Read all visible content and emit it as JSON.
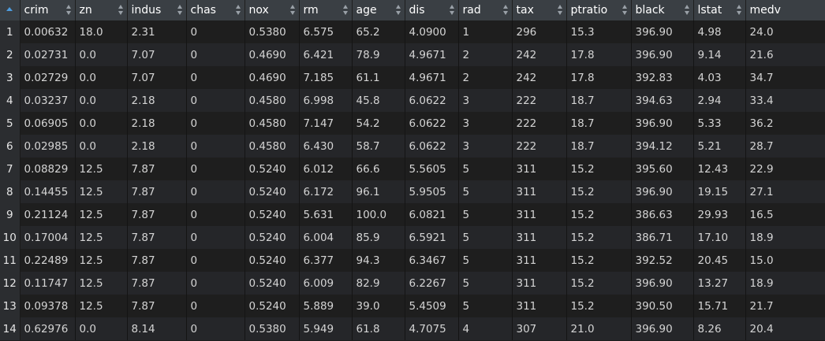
{
  "columns": [
    "crim",
    "zn",
    "indus",
    "chas",
    "nox",
    "rm",
    "age",
    "dis",
    "rad",
    "tax",
    "ptratio",
    "black",
    "lstat",
    "medv"
  ],
  "rows": [
    {
      "index": "1",
      "cells": [
        "0.00632",
        "18.0",
        "2.31",
        "0",
        "0.5380",
        "6.575",
        "65.2",
        "4.0900",
        "1",
        "296",
        "15.3",
        "396.90",
        "4.98",
        "24.0"
      ]
    },
    {
      "index": "2",
      "cells": [
        "0.02731",
        "0.0",
        "7.07",
        "0",
        "0.4690",
        "6.421",
        "78.9",
        "4.9671",
        "2",
        "242",
        "17.8",
        "396.90",
        "9.14",
        "21.6"
      ]
    },
    {
      "index": "3",
      "cells": [
        "0.02729",
        "0.0",
        "7.07",
        "0",
        "0.4690",
        "7.185",
        "61.1",
        "4.9671",
        "2",
        "242",
        "17.8",
        "392.83",
        "4.03",
        "34.7"
      ]
    },
    {
      "index": "4",
      "cells": [
        "0.03237",
        "0.0",
        "2.18",
        "0",
        "0.4580",
        "6.998",
        "45.8",
        "6.0622",
        "3",
        "222",
        "18.7",
        "394.63",
        "2.94",
        "33.4"
      ]
    },
    {
      "index": "5",
      "cells": [
        "0.06905",
        "0.0",
        "2.18",
        "0",
        "0.4580",
        "7.147",
        "54.2",
        "6.0622",
        "3",
        "222",
        "18.7",
        "396.90",
        "5.33",
        "36.2"
      ]
    },
    {
      "index": "6",
      "cells": [
        "0.02985",
        "0.0",
        "2.18",
        "0",
        "0.4580",
        "6.430",
        "58.7",
        "6.0622",
        "3",
        "222",
        "18.7",
        "394.12",
        "5.21",
        "28.7"
      ]
    },
    {
      "index": "7",
      "cells": [
        "0.08829",
        "12.5",
        "7.87",
        "0",
        "0.5240",
        "6.012",
        "66.6",
        "5.5605",
        "5",
        "311",
        "15.2",
        "395.60",
        "12.43",
        "22.9"
      ]
    },
    {
      "index": "8",
      "cells": [
        "0.14455",
        "12.5",
        "7.87",
        "0",
        "0.5240",
        "6.172",
        "96.1",
        "5.9505",
        "5",
        "311",
        "15.2",
        "396.90",
        "19.15",
        "27.1"
      ]
    },
    {
      "index": "9",
      "cells": [
        "0.21124",
        "12.5",
        "7.87",
        "0",
        "0.5240",
        "5.631",
        "100.0",
        "6.0821",
        "5",
        "311",
        "15.2",
        "386.63",
        "29.93",
        "16.5"
      ]
    },
    {
      "index": "10",
      "cells": [
        "0.17004",
        "12.5",
        "7.87",
        "0",
        "0.5240",
        "6.004",
        "85.9",
        "6.5921",
        "5",
        "311",
        "15.2",
        "386.71",
        "17.10",
        "18.9"
      ]
    },
    {
      "index": "11",
      "cells": [
        "0.22489",
        "12.5",
        "7.87",
        "0",
        "0.5240",
        "6.377",
        "94.3",
        "6.3467",
        "5",
        "311",
        "15.2",
        "392.52",
        "20.45",
        "15.0"
      ]
    },
    {
      "index": "12",
      "cells": [
        "0.11747",
        "12.5",
        "7.87",
        "0",
        "0.5240",
        "6.009",
        "82.9",
        "6.2267",
        "5",
        "311",
        "15.2",
        "396.90",
        "13.27",
        "18.9"
      ]
    },
    {
      "index": "13",
      "cells": [
        "0.09378",
        "12.5",
        "7.87",
        "0",
        "0.5240",
        "5.889",
        "39.0",
        "5.4509",
        "5",
        "311",
        "15.2",
        "390.50",
        "15.71",
        "21.7"
      ]
    },
    {
      "index": "14",
      "cells": [
        "0.62976",
        "0.0",
        "8.14",
        "0",
        "0.5380",
        "5.949",
        "61.8",
        "4.7075",
        "4",
        "307",
        "21.0",
        "396.90",
        "8.26",
        "20.4"
      ]
    }
  ],
  "colors": {
    "header_bg": "#3a3f44",
    "odd_row_bg": "#1e1e1e",
    "even_row_bg": "#252629",
    "index_bg": "#2b2d30",
    "sort_accent": "#4d9de0"
  },
  "icons": {
    "index_header": "sort-ascending-icon",
    "column_header": "sort-toggle-icon"
  }
}
